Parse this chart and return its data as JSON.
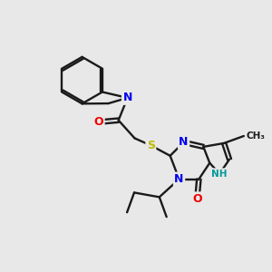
{
  "background_color": "#e8e8e8",
  "bond_color": "#1a1a1a",
  "atom_colors": {
    "N": "#0000ee",
    "O": "#ee0000",
    "S": "#bbbb00",
    "NH": "#009999",
    "C": "#1a1a1a"
  },
  "font_size_atom": 9,
  "font_size_small": 7.5,
  "figsize": [
    3.0,
    3.0
  ],
  "dpi": 100,
  "bond_lw": 1.7
}
